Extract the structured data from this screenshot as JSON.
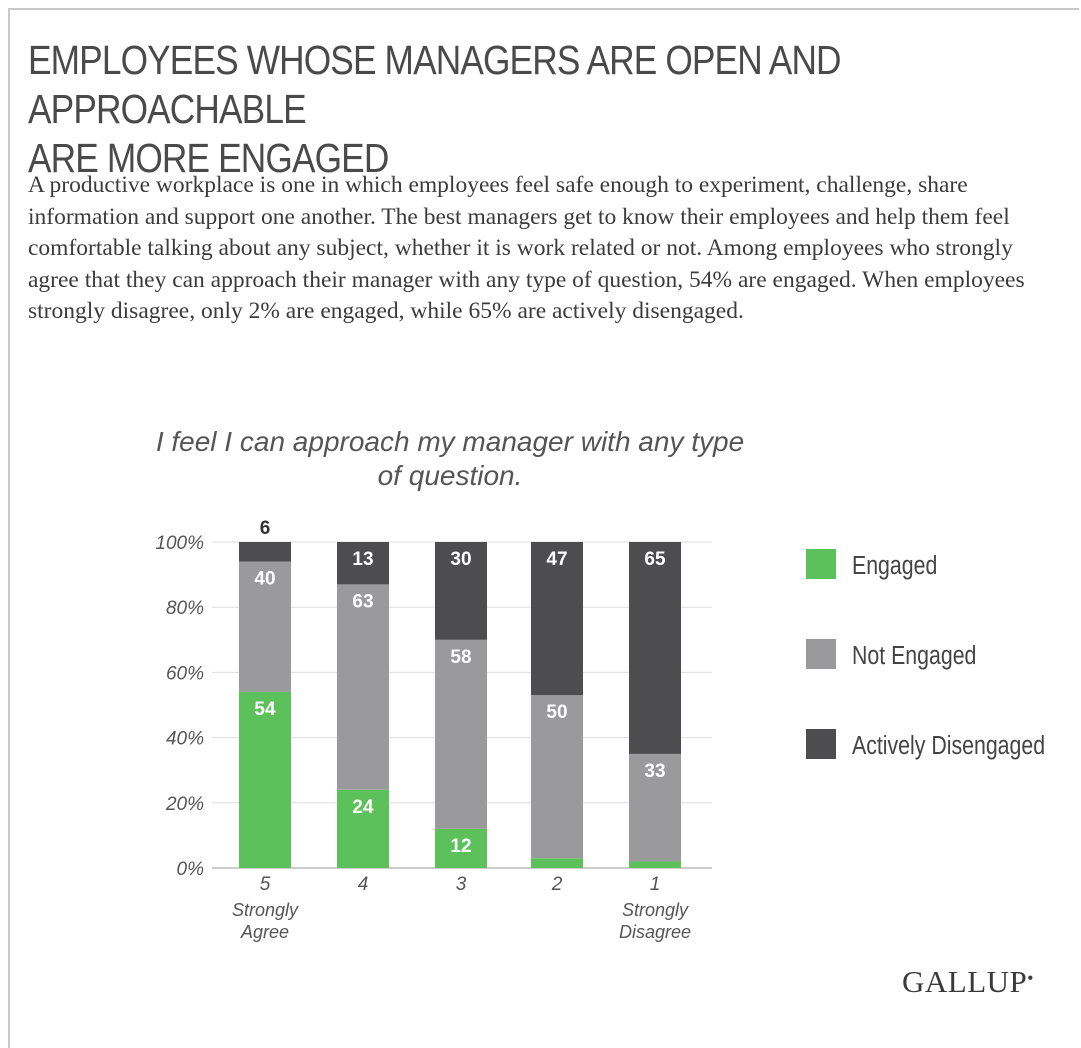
{
  "header": {
    "title_line1": "EMPLOYEES WHOSE MANAGERS ARE OPEN AND APPROACHABLE",
    "title_line2": "ARE MORE ENGAGED",
    "description": "A productive workplace is one in which employees feel safe enough to experiment, challenge, share information and support one another. The best managers get to know their employees and help them feel comfortable talking about any subject, whether it is work related or not. Among employees who strongly agree that they can approach their manager with any type of question, 54% are engaged. When employees strongly disagree, only 2% are engaged, while 65% are actively disengaged."
  },
  "brand": {
    "logo_text": "GALLUP"
  },
  "colors": {
    "engaged": "#5cc15a",
    "not_engaged": "#9a9a9c",
    "actively_disengaged": "#4d4d50",
    "gridline": "#dddddd",
    "axis_text": "#555555"
  },
  "chart_data": {
    "type": "bar",
    "stacked": true,
    "title": "I feel I can approach my manager with any type of question.",
    "categories": [
      "5",
      "4",
      "3",
      "2",
      "1"
    ],
    "category_sublabels": [
      "Strongly Agree",
      "",
      "",
      "",
      "Strongly Disagree"
    ],
    "series": [
      {
        "name": "Engaged",
        "values": [
          54,
          24,
          12,
          3,
          2
        ],
        "labels": [
          "54",
          "24",
          "12",
          "",
          ""
        ]
      },
      {
        "name": "Not Engaged",
        "values": [
          40,
          63,
          58,
          50,
          33
        ],
        "labels": [
          "40",
          "63",
          "58",
          "50",
          "33"
        ]
      },
      {
        "name": "Actively Disengaged",
        "values": [
          6,
          13,
          30,
          47,
          65
        ],
        "labels": [
          "6",
          "13",
          "30",
          "47",
          "65"
        ]
      }
    ],
    "ylim": [
      0,
      100
    ],
    "yticks": [
      "0%",
      "20%",
      "40%",
      "60%",
      "80%",
      "100%"
    ],
    "grid": true,
    "legend_position": "right"
  }
}
